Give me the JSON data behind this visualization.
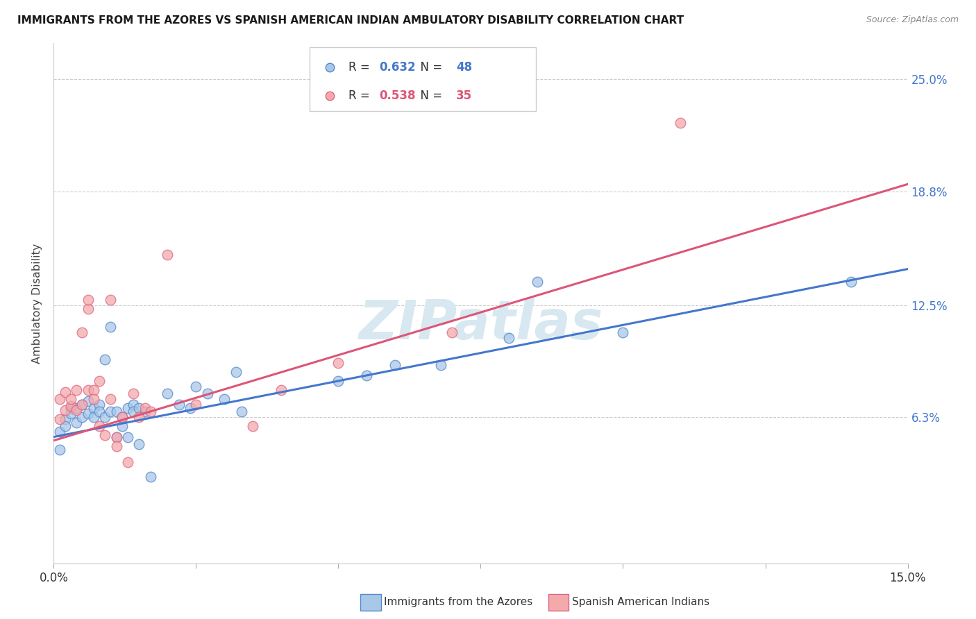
{
  "title": "IMMIGRANTS FROM THE AZORES VS SPANISH AMERICAN INDIAN AMBULATORY DISABILITY CORRELATION CHART",
  "source": "Source: ZipAtlas.com",
  "ylabel": "Ambulatory Disability",
  "xlim": [
    0.0,
    0.15
  ],
  "ylim": [
    -0.018,
    0.27
  ],
  "xticks": [
    0.0,
    0.025,
    0.05,
    0.075,
    0.1,
    0.125,
    0.15
  ],
  "ytick_positions": [
    0.063,
    0.125,
    0.188,
    0.25
  ],
  "ytick_labels": [
    "6.3%",
    "12.5%",
    "18.8%",
    "25.0%"
  ],
  "legend_label1": "Immigrants from the Azores",
  "legend_label2": "Spanish American Indians",
  "R1": "0.632",
  "N1": "48",
  "R2": "0.538",
  "N2": "35",
  "watermark": "ZIPatlas",
  "blue_fill": "#a8c8e8",
  "blue_edge": "#5588cc",
  "pink_fill": "#f4aaaa",
  "pink_edge": "#dd6688",
  "blue_line_color": "#4477cc",
  "pink_line_color": "#dd5577",
  "blue_scatter": [
    [
      0.001,
      0.055
    ],
    [
      0.001,
      0.045
    ],
    [
      0.002,
      0.062
    ],
    [
      0.002,
      0.058
    ],
    [
      0.003,
      0.068
    ],
    [
      0.003,
      0.065
    ],
    [
      0.004,
      0.068
    ],
    [
      0.004,
      0.06
    ],
    [
      0.005,
      0.063
    ],
    [
      0.005,
      0.07
    ],
    [
      0.006,
      0.065
    ],
    [
      0.006,
      0.072
    ],
    [
      0.007,
      0.068
    ],
    [
      0.007,
      0.063
    ],
    [
      0.008,
      0.07
    ],
    [
      0.008,
      0.066
    ],
    [
      0.009,
      0.063
    ],
    [
      0.009,
      0.095
    ],
    [
      0.01,
      0.066
    ],
    [
      0.01,
      0.113
    ],
    [
      0.011,
      0.066
    ],
    [
      0.011,
      0.052
    ],
    [
      0.012,
      0.063
    ],
    [
      0.012,
      0.058
    ],
    [
      0.013,
      0.052
    ],
    [
      0.013,
      0.068
    ],
    [
      0.014,
      0.07
    ],
    [
      0.014,
      0.066
    ],
    [
      0.015,
      0.068
    ],
    [
      0.015,
      0.048
    ],
    [
      0.016,
      0.066
    ],
    [
      0.017,
      0.03
    ],
    [
      0.02,
      0.076
    ],
    [
      0.022,
      0.07
    ],
    [
      0.024,
      0.068
    ],
    [
      0.025,
      0.08
    ],
    [
      0.027,
      0.076
    ],
    [
      0.03,
      0.073
    ],
    [
      0.032,
      0.088
    ],
    [
      0.033,
      0.066
    ],
    [
      0.05,
      0.083
    ],
    [
      0.055,
      0.086
    ],
    [
      0.06,
      0.092
    ],
    [
      0.068,
      0.092
    ],
    [
      0.08,
      0.107
    ],
    [
      0.085,
      0.138
    ],
    [
      0.1,
      0.11
    ],
    [
      0.14,
      0.138
    ]
  ],
  "pink_scatter": [
    [
      0.001,
      0.062
    ],
    [
      0.001,
      0.073
    ],
    [
      0.002,
      0.067
    ],
    [
      0.002,
      0.077
    ],
    [
      0.003,
      0.069
    ],
    [
      0.003,
      0.073
    ],
    [
      0.004,
      0.078
    ],
    [
      0.004,
      0.067
    ],
    [
      0.005,
      0.07
    ],
    [
      0.005,
      0.11
    ],
    [
      0.006,
      0.078
    ],
    [
      0.006,
      0.123
    ],
    [
      0.006,
      0.128
    ],
    [
      0.007,
      0.078
    ],
    [
      0.007,
      0.073
    ],
    [
      0.008,
      0.083
    ],
    [
      0.008,
      0.058
    ],
    [
      0.009,
      0.053
    ],
    [
      0.01,
      0.073
    ],
    [
      0.01,
      0.128
    ],
    [
      0.011,
      0.052
    ],
    [
      0.011,
      0.047
    ],
    [
      0.012,
      0.063
    ],
    [
      0.013,
      0.038
    ],
    [
      0.014,
      0.076
    ],
    [
      0.015,
      0.063
    ],
    [
      0.016,
      0.068
    ],
    [
      0.017,
      0.066
    ],
    [
      0.02,
      0.153
    ],
    [
      0.025,
      0.07
    ],
    [
      0.035,
      0.058
    ],
    [
      0.04,
      0.078
    ],
    [
      0.05,
      0.093
    ],
    [
      0.07,
      0.11
    ],
    [
      0.11,
      0.226
    ]
  ],
  "blue_line": [
    [
      0.0,
      0.052
    ],
    [
      0.15,
      0.145
    ]
  ],
  "pink_line": [
    [
      0.0,
      0.05
    ],
    [
      0.15,
      0.192
    ]
  ]
}
